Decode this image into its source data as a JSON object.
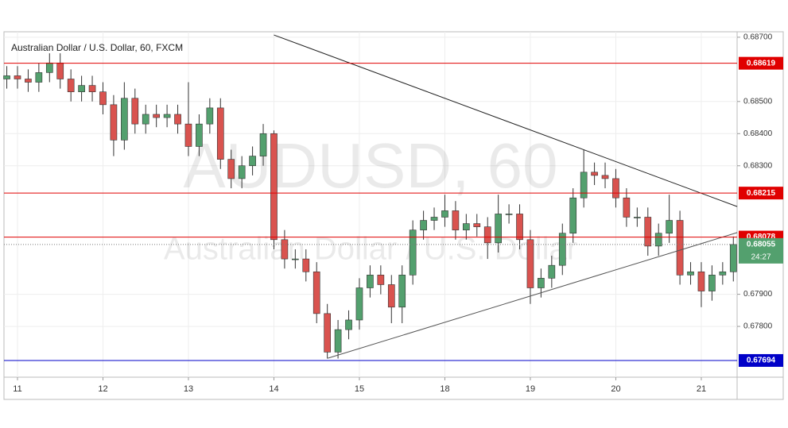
{
  "chart_data": {
    "type": "candlestick",
    "title": "Australian Dollar / U.S. Dollar, 60, FXCM",
    "watermark": "AUDUSD, 60",
    "watermark_subtitle": "Australian Dollar / U.S. Dollar",
    "xlim": [
      -0.158,
      8.419
    ],
    "ylim": [
      0.67642,
      0.68717
    ],
    "xticks": [
      {
        "value": 0,
        "label": "11"
      },
      {
        "value": 1,
        "label": "12"
      },
      {
        "value": 2,
        "label": "13"
      },
      {
        "value": 3,
        "label": "14"
      },
      {
        "value": 4,
        "label": "15"
      },
      {
        "value": 5,
        "label": "18"
      },
      {
        "value": 6,
        "label": "19"
      },
      {
        "value": 7,
        "label": "20"
      },
      {
        "value": 8,
        "label": "21"
      }
    ],
    "yticks": [
      {
        "value": 0.678,
        "label": "0.67800"
      },
      {
        "value": 0.679,
        "label": "0.67900"
      },
      {
        "value": 0.683,
        "label": "0.68300"
      },
      {
        "value": 0.684,
        "label": "0.68400"
      },
      {
        "value": 0.685,
        "label": "0.68500"
      },
      {
        "value": 0.687,
        "label": "0.68700"
      }
    ],
    "grid": true,
    "up_color": "#53a06e",
    "down_color": "#d9534f",
    "x": [
      -0.125,
      0,
      0.125,
      0.25,
      0.375,
      0.5,
      0.625,
      0.75,
      0.875,
      1,
      1.125,
      1.25,
      1.375,
      1.5,
      1.625,
      1.75,
      1.875,
      2,
      2.125,
      2.25,
      2.375,
      2.5,
      2.625,
      2.75,
      2.875,
      3,
      3.125,
      3.25,
      3.375,
      3.5,
      3.625,
      3.75,
      3.875,
      4,
      4.125,
      4.25,
      4.375,
      4.5,
      4.625,
      4.75,
      4.875,
      5,
      5.125,
      5.25,
      5.375,
      5.5,
      5.625,
      5.75,
      5.875,
      6,
      6.125,
      6.25,
      6.375,
      6.5,
      6.625,
      6.75,
      6.875,
      7,
      7.125,
      7.25,
      7.375,
      7.5,
      7.625,
      7.75,
      7.875,
      8,
      8.125,
      8.25,
      8.375
    ],
    "open": [
      0.6857,
      0.6858,
      0.6857,
      0.6856,
      0.6859,
      0.6862,
      0.6857,
      0.6853,
      0.6855,
      0.6853,
      0.6849,
      0.6838,
      0.6851,
      0.6843,
      0.6846,
      0.6845,
      0.6846,
      0.6843,
      0.6836,
      0.6843,
      0.6848,
      0.6832,
      0.6826,
      0.683,
      0.6833,
      0.684,
      0.6807,
      0.6801,
      0.6801,
      0.6797,
      0.6784,
      0.6772,
      0.6779,
      0.6782,
      0.6792,
      0.6796,
      0.6793,
      0.6786,
      0.6796,
      0.681,
      0.6813,
      0.6814,
      0.6816,
      0.681,
      0.6812,
      0.6811,
      0.6806,
      0.6815,
      0.6815,
      0.6807,
      0.6792,
      0.6795,
      0.6799,
      0.6809,
      0.682,
      0.6828,
      0.6827,
      0.6826,
      0.682,
      0.6814,
      0.6814,
      0.6805,
      0.6809,
      0.6813,
      0.6796,
      0.6797,
      0.6791,
      0.6796,
      0.6797
    ],
    "high": [
      0.6861,
      0.6861,
      0.686,
      0.6862,
      0.6865,
      0.6865,
      0.686,
      0.6858,
      0.6858,
      0.6856,
      0.6852,
      0.6856,
      0.6854,
      0.6849,
      0.6849,
      0.6849,
      0.6849,
      0.6856,
      0.6846,
      0.6851,
      0.6851,
      0.6835,
      0.6833,
      0.6836,
      0.6843,
      0.6841,
      0.681,
      0.6804,
      0.6804,
      0.68,
      0.6787,
      0.6782,
      0.6785,
      0.6795,
      0.6799,
      0.6799,
      0.6796,
      0.6799,
      0.6813,
      0.6816,
      0.6817,
      0.6821,
      0.6819,
      0.6815,
      0.6815,
      0.6814,
      0.6821,
      0.6818,
      0.6818,
      0.681,
      0.6798,
      0.6802,
      0.6812,
      0.6823,
      0.6835,
      0.6831,
      0.6831,
      0.6829,
      0.6823,
      0.6817,
      0.6817,
      0.6812,
      0.6821,
      0.6816,
      0.68,
      0.68,
      0.6799,
      0.68,
      0.6808
    ],
    "low": [
      0.6854,
      0.6854,
      0.6853,
      0.6853,
      0.6856,
      0.6854,
      0.685,
      0.685,
      0.685,
      0.6846,
      0.6833,
      0.6835,
      0.684,
      0.684,
      0.6842,
      0.6842,
      0.684,
      0.6833,
      0.6833,
      0.684,
      0.6829,
      0.6823,
      0.6823,
      0.6827,
      0.683,
      0.6804,
      0.6798,
      0.6798,
      0.6794,
      0.6781,
      0.677,
      0.677,
      0.6776,
      0.6779,
      0.6789,
      0.679,
      0.6781,
      0.6781,
      0.6793,
      0.6807,
      0.681,
      0.6811,
      0.6807,
      0.6807,
      0.6808,
      0.6801,
      0.6803,
      0.6812,
      0.6804,
      0.6787,
      0.6789,
      0.6792,
      0.6796,
      0.6806,
      0.6817,
      0.6824,
      0.6823,
      0.6817,
      0.6811,
      0.6811,
      0.6802,
      0.6802,
      0.6806,
      0.6793,
      0.6793,
      0.6786,
      0.6788,
      0.6793,
      0.6794
    ],
    "close": [
      0.6858,
      0.6857,
      0.6856,
      0.6859,
      0.6862,
      0.6857,
      0.6853,
      0.6855,
      0.6853,
      0.6849,
      0.6838,
      0.6851,
      0.6843,
      0.6846,
      0.6845,
      0.6846,
      0.6843,
      0.6836,
      0.6843,
      0.6848,
      0.6832,
      0.6826,
      0.683,
      0.6833,
      0.684,
      0.6807,
      0.6801,
      0.6801,
      0.6797,
      0.6784,
      0.6772,
      0.6779,
      0.6782,
      0.6792,
      0.6796,
      0.6793,
      0.6786,
      0.6796,
      0.681,
      0.6813,
      0.6814,
      0.6816,
      0.681,
      0.6812,
      0.6811,
      0.6806,
      0.6815,
      0.6815,
      0.6807,
      0.6792,
      0.6795,
      0.6799,
      0.6809,
      0.682,
      0.6828,
      0.6827,
      0.6826,
      0.682,
      0.6814,
      0.6814,
      0.6805,
      0.6809,
      0.6813,
      0.6796,
      0.6797,
      0.6791,
      0.6796,
      0.6797,
      0.68055
    ],
    "levels": [
      {
        "value": 0.68619,
        "color": "#e00000"
      },
      {
        "value": 0.68215,
        "color": "#e00000"
      },
      {
        "value": 0.68078,
        "color": "#e00000"
      },
      {
        "value": 0.67694,
        "color": "#0000c8"
      }
    ],
    "current_price": 0.68055,
    "current_color": "#53a06e",
    "countdown": "24:27",
    "trendlines": [
      {
        "x": [
          3.0,
          8.42
        ],
        "y": [
          0.68707,
          0.68173
        ],
        "color": "#222222"
      },
      {
        "x": [
          3.63,
          8.42
        ],
        "y": [
          0.67701,
          0.68092
        ],
        "color": "#555555"
      }
    ]
  }
}
